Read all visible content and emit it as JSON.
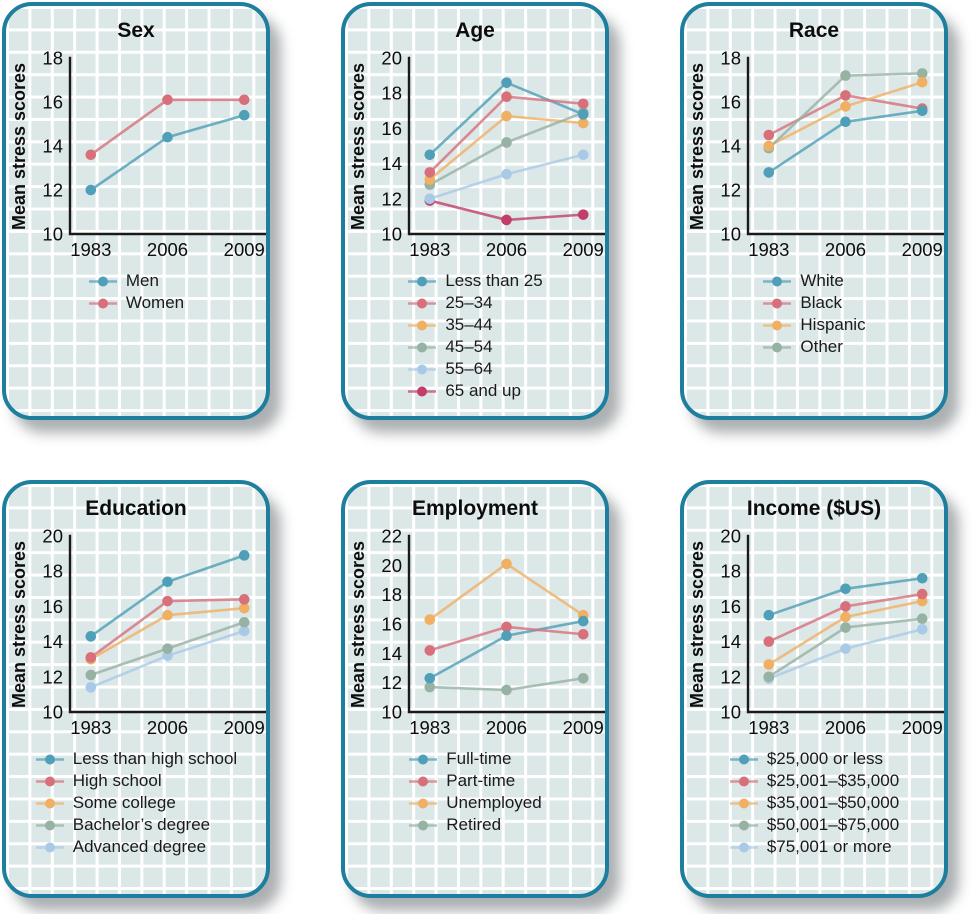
{
  "chart_data": [
    {
      "type": "line",
      "title": "Sex",
      "ylabel": "Mean stress scores",
      "xlabel": "",
      "categories": [
        "1983",
        "2006",
        "2009"
      ],
      "ylim": [
        10,
        18
      ],
      "ytick_step": 2,
      "grid": false,
      "legend_position": "bottom",
      "series": [
        {
          "name": "Men",
          "color": "#4e9fb7",
          "values": [
            12.0,
            14.4,
            15.4
          ]
        },
        {
          "name": "Women",
          "color": "#d7707a",
          "values": [
            13.6,
            16.1,
            16.1
          ]
        }
      ]
    },
    {
      "type": "line",
      "title": "Age",
      "ylabel": "Mean stress scores",
      "xlabel": "",
      "categories": [
        "1983",
        "2006",
        "2009"
      ],
      "ylim": [
        10,
        20
      ],
      "ytick_step": 2,
      "grid": false,
      "legend_position": "bottom",
      "series": [
        {
          "name": "Less than 25",
          "color": "#4e9fb7",
          "values": [
            14.5,
            18.6,
            16.8
          ]
        },
        {
          "name": "25–34",
          "color": "#d7707a",
          "values": [
            13.5,
            17.8,
            17.4
          ]
        },
        {
          "name": "35–44",
          "color": "#f0b064",
          "values": [
            13.1,
            16.7,
            16.3
          ]
        },
        {
          "name": "45–54",
          "color": "#96b2a2",
          "values": [
            12.8,
            15.2,
            16.9
          ]
        },
        {
          "name": "55–64",
          "color": "#a9cae7",
          "values": [
            12.0,
            13.4,
            14.5
          ]
        },
        {
          "name": "65 and up",
          "color": "#c23e68",
          "values": [
            11.9,
            10.8,
            11.1
          ]
        }
      ]
    },
    {
      "type": "line",
      "title": "Race",
      "ylabel": "Mean stress scores",
      "xlabel": "",
      "categories": [
        "1983",
        "2006",
        "2009"
      ],
      "ylim": [
        10,
        18
      ],
      "ytick_step": 2,
      "grid": false,
      "legend_position": "bottom",
      "series": [
        {
          "name": "White",
          "color": "#4e9fb7",
          "values": [
            12.8,
            15.1,
            15.6
          ]
        },
        {
          "name": "Black",
          "color": "#d7707a",
          "values": [
            14.5,
            16.3,
            15.7
          ]
        },
        {
          "name": "Hispanic",
          "color": "#f0b064",
          "values": [
            14.0,
            15.8,
            16.9
          ]
        },
        {
          "name": "Other",
          "color": "#96b2a2",
          "values": [
            13.9,
            17.2,
            17.3
          ]
        }
      ]
    },
    {
      "type": "line",
      "title": "Education",
      "ylabel": "Mean stress scores",
      "xlabel": "",
      "categories": [
        "1983",
        "2006",
        "2009"
      ],
      "ylim": [
        10,
        20
      ],
      "ytick_step": 2,
      "grid": false,
      "legend_position": "bottom",
      "series": [
        {
          "name": "Less than high school",
          "color": "#4e9fb7",
          "values": [
            14.3,
            17.4,
            18.9
          ]
        },
        {
          "name": "High school",
          "color": "#d7707a",
          "values": [
            13.1,
            16.3,
            16.4
          ]
        },
        {
          "name": "Some college",
          "color": "#f0b064",
          "values": [
            13.0,
            15.5,
            15.9
          ]
        },
        {
          "name": "Bachelor’s degree",
          "color": "#96b2a2",
          "values": [
            12.1,
            13.6,
            15.1
          ]
        },
        {
          "name": "Advanced degree",
          "color": "#a9cae7",
          "values": [
            11.4,
            13.2,
            14.6
          ]
        }
      ]
    },
    {
      "type": "line",
      "title": "Employment",
      "ylabel": "Mean stress scores",
      "xlabel": "",
      "categories": [
        "1983",
        "2006",
        "2009"
      ],
      "ylim": [
        10,
        22
      ],
      "ytick_step": 2,
      "grid": false,
      "legend_position": "bottom",
      "series": [
        {
          "name": "Full-time",
          "color": "#4e9fb7",
          "values": [
            12.3,
            15.2,
            16.2
          ]
        },
        {
          "name": "Part-time",
          "color": "#d7707a",
          "values": [
            14.2,
            15.8,
            15.3
          ]
        },
        {
          "name": "Unemployed",
          "color": "#f0b064",
          "values": [
            16.3,
            20.1,
            16.6
          ]
        },
        {
          "name": "Retired",
          "color": "#96b2a2",
          "values": [
            11.7,
            11.5,
            12.3
          ]
        }
      ]
    },
    {
      "type": "line",
      "title": "Income ($US)",
      "ylabel": "Mean stress scores",
      "xlabel": "",
      "categories": [
        "1983",
        "2006",
        "2009"
      ],
      "ylim": [
        10,
        20
      ],
      "ytick_step": 2,
      "grid": false,
      "legend_position": "bottom",
      "series": [
        {
          "name": "$25,000 or less",
          "color": "#4e9fb7",
          "values": [
            15.5,
            17.0,
            17.6
          ]
        },
        {
          "name": "$25,001–$35,000",
          "color": "#d7707a",
          "values": [
            14.0,
            16.0,
            16.7
          ]
        },
        {
          "name": "$35,001–$50,000",
          "color": "#f0b064",
          "values": [
            12.7,
            15.4,
            16.3
          ]
        },
        {
          "name": "$50,001–$75,000",
          "color": "#96b2a2",
          "values": [
            12.0,
            14.8,
            15.3
          ]
        },
        {
          "name": "$75,001 or more",
          "color": "#a9cae7",
          "values": [
            11.9,
            13.6,
            14.7
          ]
        }
      ]
    }
  ],
  "style": {
    "panel_border_color": "#1e7e9e",
    "panel_background_color": "#dce7e8",
    "grid_line_color": "#ffffff",
    "axis_color": "#1a1a1a"
  }
}
